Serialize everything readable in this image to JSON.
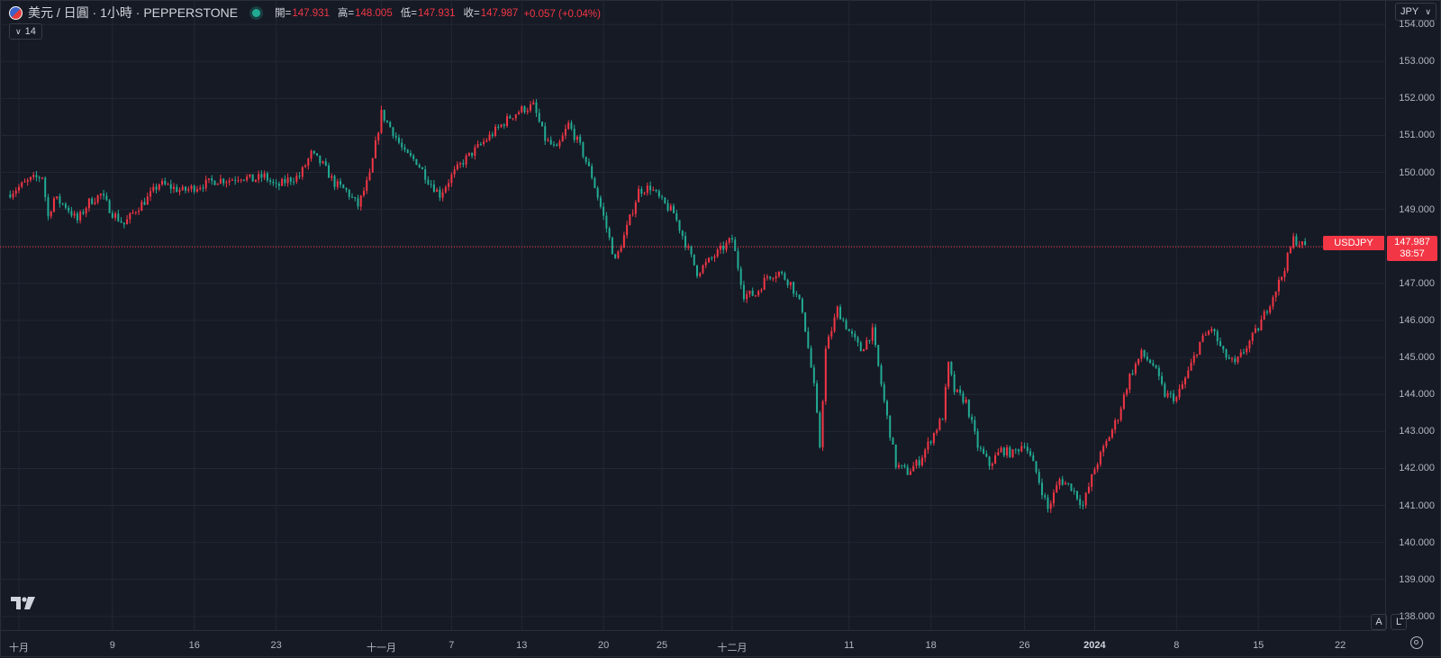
{
  "header": {
    "symbol_title": "美元 / 日圓 · 1小時 · PEPPERSTONE",
    "ohlc": [
      {
        "label": "開=",
        "value": "147.931"
      },
      {
        "label": "高=",
        "value": "148.005"
      },
      {
        "label": "低=",
        "value": "147.931"
      },
      {
        "label": "收=",
        "value": "147.987"
      },
      {
        "label": "",
        "value": "+0.057 (+0.04%)"
      }
    ],
    "indicator_count": "14",
    "currency_button": "JPY",
    "market_status_color": "#22ab94"
  },
  "price_label": {
    "symbol": "USDJPY",
    "price": "147.987",
    "countdown": "38:57",
    "color": "#f23645"
  },
  "axis_buttons": {
    "auto": "A",
    "log": "L"
  },
  "icons": {
    "logo": "tradingview-logo-icon",
    "settings": "settings-gear-icon",
    "dropdown": "chevron-down-icon"
  },
  "colors": {
    "up": "#f23645",
    "down": "#22ab94",
    "background": "#161a25"
  },
  "chart_data": {
    "type": "candlestick",
    "title": "美元 / 日圓 · 1小時 · PEPPERSTONE",
    "ylim": [
      137.0,
      155.0
    ],
    "y_ticks": [
      "154.000",
      "153.000",
      "152.000",
      "151.000",
      "150.000",
      "149.000",
      "148.000",
      "147.000",
      "146.000",
      "145.000",
      "144.000",
      "143.000",
      "142.000",
      "141.000",
      "140.000",
      "139.000",
      "138.000"
    ],
    "x_ticks": [
      {
        "label": "十月",
        "day": 1
      },
      {
        "label": "9",
        "day": 9
      },
      {
        "label": "16",
        "day": 16
      },
      {
        "label": "23",
        "day": 23
      },
      {
        "label": "十一月",
        "day": 32
      },
      {
        "label": "7",
        "day": 38
      },
      {
        "label": "13",
        "day": 44
      },
      {
        "label": "20",
        "day": 51
      },
      {
        "label": "25",
        "day": 56
      },
      {
        "label": "十二月",
        "day": 62
      },
      {
        "label": "11",
        "day": 72
      },
      {
        "label": "18",
        "day": 79
      },
      {
        "label": "26",
        "day": 87
      },
      {
        "label": "2024",
        "day": 93,
        "bold": true
      },
      {
        "label": "8",
        "day": 100
      },
      {
        "label": "15",
        "day": 107
      },
      {
        "label": "22",
        "day": 114
      }
    ],
    "x_range_days": [
      0.0,
      119.0
    ],
    "current_price": 147.987,
    "series": [
      {
        "name": "USDJPY",
        "x": [
          0,
          1,
          2,
          3,
          3.5,
          4,
          5,
          6,
          7,
          8,
          9,
          10,
          11,
          12,
          13,
          14,
          15,
          16,
          17,
          18,
          19,
          20,
          21,
          22,
          23,
          24,
          25,
          26,
          27,
          28,
          29,
          30,
          31,
          32,
          33,
          34,
          35,
          36,
          37,
          38,
          39,
          40,
          41,
          42,
          43,
          44,
          45,
          46,
          47,
          48,
          49,
          50,
          51,
          52,
          53,
          54,
          55,
          56,
          57,
          58,
          59,
          60,
          61,
          62,
          63,
          64,
          65,
          66,
          67,
          68,
          69,
          69.5,
          70,
          71,
          72,
          73,
          74,
          75,
          76,
          77,
          78,
          79,
          80,
          80.5,
          81,
          82,
          83,
          84,
          85,
          86,
          87,
          88,
          89,
          90,
          91,
          92,
          93,
          94,
          95,
          96,
          97,
          98,
          99,
          100,
          101,
          102,
          103,
          104,
          105,
          106,
          107,
          108,
          109,
          110,
          111
        ],
        "close": [
          149.4,
          149.6,
          149.8,
          149.9,
          148.8,
          149.3,
          149.1,
          148.7,
          149.2,
          149.4,
          148.9,
          148.6,
          149.0,
          149.3,
          149.7,
          149.6,
          149.5,
          149.6,
          149.7,
          149.8,
          149.8,
          149.9,
          149.8,
          149.9,
          149.6,
          149.8,
          149.9,
          150.5,
          150.2,
          149.7,
          149.5,
          149.1,
          149.9,
          151.6,
          151.1,
          150.5,
          150.3,
          149.8,
          149.4,
          149.9,
          150.3,
          150.6,
          150.9,
          151.2,
          151.5,
          151.7,
          151.8,
          150.9,
          150.6,
          151.3,
          150.7,
          149.9,
          148.8,
          147.6,
          148.5,
          149.5,
          149.6,
          149.2,
          148.9,
          148.1,
          147.3,
          147.6,
          147.9,
          148.2,
          146.7,
          146.7,
          147.2,
          147.3,
          147.0,
          146.3,
          144.2,
          142.6,
          145.2,
          146.3,
          145.7,
          145.2,
          145.7,
          143.8,
          142.1,
          141.9,
          142.2,
          142.8,
          143.4,
          144.8,
          144.1,
          143.8,
          142.6,
          142.1,
          142.5,
          142.4,
          142.7,
          141.9,
          140.9,
          141.7,
          141.5,
          141.0,
          142.0,
          142.7,
          143.4,
          144.5,
          145.1,
          144.8,
          144.0,
          143.9,
          144.6,
          145.4,
          145.8,
          145.1,
          144.8,
          145.3,
          145.8,
          146.5,
          147.2,
          148.2,
          147.99
        ]
      }
    ]
  }
}
